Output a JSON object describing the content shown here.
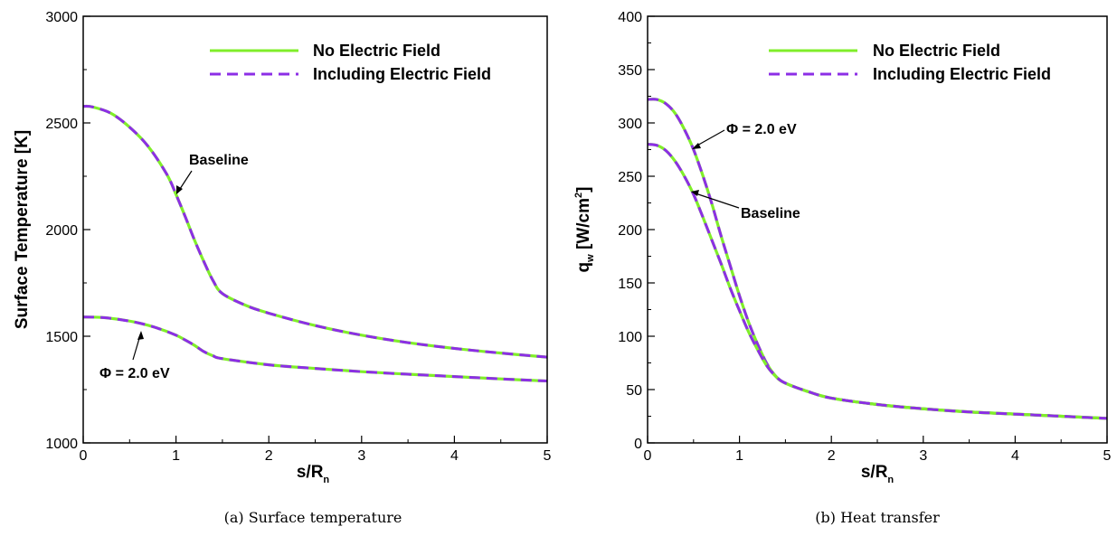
{
  "chart_data": [
    {
      "type": "line",
      "id": "a",
      "xlabel": "s/R",
      "xlabel_sub": "n",
      "ylabel": "Surface Temperature [K]",
      "xlim": [
        0,
        5
      ],
      "ylim": [
        1000,
        3000
      ],
      "xticks": [
        0,
        1,
        2,
        3,
        4,
        5
      ],
      "yticks": [
        1000,
        1500,
        2000,
        2500,
        3000
      ],
      "grid": false,
      "legend_position": "top-right",
      "legend": [
        {
          "label": "No Electric Field",
          "style": "solid",
          "color": "#80ee2a"
        },
        {
          "label": "Including Electric Field",
          "style": "dashed",
          "color": "#8c2ee6"
        }
      ],
      "caption": "(a) Surface temperature",
      "series": [
        {
          "x": [
            0,
            0.1,
            0.3,
            0.5,
            0.7,
            0.9,
            1.0,
            1.1,
            1.2,
            1.3,
            1.4,
            1.5,
            1.75,
            2.0,
            2.5,
            3.0,
            3.5,
            4.0,
            4.5,
            5.0
          ],
          "y": [
            2578,
            2575,
            2545,
            2480,
            2390,
            2260,
            2165,
            2060,
            1950,
            1850,
            1760,
            1700,
            1645,
            1608,
            1550,
            1505,
            1470,
            1443,
            1421,
            1402
          ]
        },
        {
          "x": [
            0,
            0.2,
            0.4,
            0.6,
            0.8,
            1.0,
            1.1,
            1.2,
            1.3,
            1.4,
            1.5,
            2.0,
            2.5,
            3.0,
            3.5,
            4.0,
            4.5,
            5.0
          ],
          "y": [
            1590,
            1588,
            1578,
            1562,
            1538,
            1505,
            1482,
            1457,
            1428,
            1408,
            1395,
            1366,
            1349,
            1334,
            1322,
            1311,
            1300,
            1290
          ]
        }
      ],
      "annotations": [
        {
          "text": "Baseline",
          "x": 1.22,
          "y": 2330,
          "arrow_to": [
            0.99,
            2170
          ]
        },
        {
          "text": "Φ = 2.0 eV",
          "x": 0.45,
          "y": 1335,
          "arrow_to": [
            0.55,
            1555
          ]
        }
      ]
    },
    {
      "type": "line",
      "id": "b",
      "xlabel": "s/R",
      "xlabel_sub": "n",
      "ylabel": "q",
      "ylabel_sub": "w",
      "ylabel_tail": " [W/cm",
      "ylabel_sup": "2",
      "ylabel_close": "]",
      "xlim": [
        0,
        5
      ],
      "ylim": [
        0,
        400
      ],
      "xticks": [
        0,
        1,
        2,
        3,
        4,
        5
      ],
      "yticks": [
        0,
        50,
        100,
        150,
        200,
        250,
        300,
        350,
        400
      ],
      "grid": false,
      "legend_position": "top-right",
      "legend": [
        {
          "label": "No Electric Field",
          "style": "solid",
          "color": "#80ee2a"
        },
        {
          "label": "Including Electric Field",
          "style": "dashed",
          "color": "#8c2ee6"
        }
      ],
      "caption": "(b) Heat transfer",
      "series": [
        {
          "x": [
            0,
            0.1,
            0.2,
            0.3,
            0.4,
            0.5,
            0.6,
            0.7,
            0.8,
            0.9,
            1.0,
            1.1,
            1.2,
            1.3,
            1.4,
            1.5,
            1.75,
            2.0,
            2.5,
            3.0,
            3.5,
            4.0,
            4.5,
            5.0
          ],
          "y": [
            322,
            322,
            318,
            309,
            294,
            275,
            251,
            224,
            194,
            166,
            138,
            113,
            92,
            74,
            62,
            56,
            48,
            42,
            36,
            32,
            29,
            27,
            25,
            23
          ]
        },
        {
          "x": [
            0,
            0.1,
            0.2,
            0.3,
            0.4,
            0.5,
            0.6,
            0.7,
            0.8,
            0.9,
            1.0,
            1.1,
            1.2,
            1.3,
            1.4,
            1.5,
            1.75,
            2.0,
            2.5,
            3.0,
            3.5,
            4.0,
            4.5,
            5.0
          ],
          "y": [
            280,
            279,
            274,
            264,
            250,
            233,
            212,
            190,
            168,
            145,
            124,
            104,
            87,
            72,
            62,
            56,
            48,
            42,
            36,
            32,
            29,
            27,
            25,
            23
          ]
        }
      ],
      "annotations": [
        {
          "text": "Φ = 2.0 eV",
          "x": 0.9,
          "y": 300,
          "arrow_to": [
            0.6,
            275
          ]
        },
        {
          "text": "Baseline",
          "x": 0.95,
          "y": 214,
          "arrow_to": [
            0.55,
            236
          ]
        }
      ]
    }
  ]
}
